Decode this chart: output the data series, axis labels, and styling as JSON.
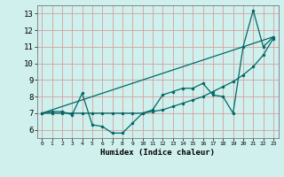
{
  "xlabel": "Humidex (Indice chaleur)",
  "bg_color": "#cff0ec",
  "grid_color": "#d4a0a0",
  "line_color": "#006868",
  "xlim": [
    -0.5,
    23.5
  ],
  "ylim": [
    5.5,
    13.5
  ],
  "xticks": [
    0,
    1,
    2,
    3,
    4,
    5,
    6,
    7,
    8,
    9,
    10,
    11,
    12,
    13,
    14,
    15,
    16,
    17,
    18,
    19,
    20,
    21,
    22,
    23
  ],
  "yticks": [
    6,
    7,
    8,
    9,
    10,
    11,
    12,
    13
  ],
  "line1_x": [
    0,
    1,
    2,
    3,
    4,
    5,
    6,
    7,
    8,
    9,
    10,
    11,
    12,
    13,
    14,
    15,
    16,
    17,
    18,
    19,
    20,
    21,
    22,
    23
  ],
  "line1_y": [
    7.0,
    7.1,
    7.1,
    6.9,
    8.2,
    6.3,
    6.2,
    5.8,
    5.8,
    6.4,
    7.0,
    7.2,
    8.1,
    8.3,
    8.5,
    8.5,
    8.8,
    8.1,
    8.0,
    7.0,
    11.0,
    13.2,
    11.0,
    11.6
  ],
  "line2_x": [
    0,
    1,
    2,
    3,
    4,
    5,
    6,
    7,
    8,
    9,
    10,
    11,
    12,
    13,
    14,
    15,
    16,
    17,
    18,
    19,
    20,
    21,
    22,
    23
  ],
  "line2_y": [
    7.0,
    7.0,
    7.0,
    7.0,
    7.0,
    7.0,
    7.0,
    7.0,
    7.0,
    7.0,
    7.0,
    7.1,
    7.2,
    7.4,
    7.6,
    7.8,
    8.0,
    8.3,
    8.6,
    8.9,
    9.3,
    9.8,
    10.5,
    11.5
  ],
  "line3_x": [
    0,
    23
  ],
  "line3_y": [
    7.0,
    11.6
  ]
}
